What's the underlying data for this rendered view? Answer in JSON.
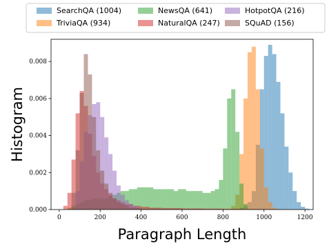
{
  "chart_data": {
    "type": "bar",
    "subtype": "overlapping-histogram",
    "xlabel": "Paragraph Length",
    "ylabel": "Histogram",
    "xlim": [
      -40,
      1240
    ],
    "ylim": [
      0,
      0.0092
    ],
    "xticks": [
      0,
      200,
      400,
      600,
      800,
      1000,
      1200
    ],
    "yticks": [
      0.0,
      0.002,
      0.004,
      0.006,
      0.008
    ],
    "ytick_labels": [
      "0.000",
      "0.002",
      "0.004",
      "0.006",
      "0.008"
    ],
    "grid": false,
    "legend_position": "top, outside plot, 3 columns",
    "series": [
      {
        "name": "SearchQA (1004)",
        "color": "#1f77b4",
        "bins": [
          [
            880,
            900,
            0.0001
          ],
          [
            900,
            920,
            0.0002
          ],
          [
            920,
            940,
            0.0004
          ],
          [
            940,
            960,
            0.001
          ],
          [
            960,
            980,
            0.0035
          ],
          [
            980,
            1000,
            0.0065
          ],
          [
            1000,
            1020,
            0.0083
          ],
          [
            1020,
            1040,
            0.0089
          ],
          [
            1040,
            1060,
            0.0084
          ],
          [
            1060,
            1080,
            0.0069
          ],
          [
            1080,
            1100,
            0.0052
          ],
          [
            1100,
            1120,
            0.0034
          ],
          [
            1120,
            1140,
            0.002
          ],
          [
            1140,
            1160,
            0.001
          ],
          [
            1160,
            1180,
            0.0004
          ],
          [
            1180,
            1200,
            0.00015
          ],
          [
            1200,
            1220,
            5e-05
          ]
        ]
      },
      {
        "name": "TriviaQA (934)",
        "color": "#ff7f0e",
        "bins": [
          [
            840,
            860,
            0.0002
          ],
          [
            860,
            880,
            0.0008
          ],
          [
            880,
            900,
            0.003
          ],
          [
            900,
            920,
            0.006
          ],
          [
            920,
            940,
            0.0085
          ],
          [
            940,
            960,
            0.0088
          ],
          [
            960,
            980,
            0.0065
          ],
          [
            980,
            1000,
            0.0033
          ],
          [
            1000,
            1020,
            0.0012
          ],
          [
            1020,
            1040,
            0.0004
          ],
          [
            1040,
            1060,
            0.0001
          ]
        ]
      },
      {
        "name": "NewsQA (641)",
        "color": "#2ca02c",
        "bins": [
          [
            40,
            60,
            0.0001
          ],
          [
            60,
            80,
            0.0002
          ],
          [
            80,
            100,
            0.0003
          ],
          [
            100,
            120,
            0.0004
          ],
          [
            120,
            140,
            0.0005
          ],
          [
            140,
            160,
            0.0005
          ],
          [
            160,
            180,
            0.0006
          ],
          [
            180,
            200,
            0.0006
          ],
          [
            200,
            220,
            0.0006
          ],
          [
            220,
            240,
            0.0006
          ],
          [
            240,
            260,
            0.0007
          ],
          [
            260,
            280,
            0.0008
          ],
          [
            280,
            300,
            0.0009
          ],
          [
            300,
            320,
            0.001
          ],
          [
            320,
            340,
            0.001
          ],
          [
            340,
            360,
            0.0011
          ],
          [
            360,
            380,
            0.0011
          ],
          [
            380,
            400,
            0.0012
          ],
          [
            400,
            420,
            0.0012
          ],
          [
            420,
            440,
            0.0012
          ],
          [
            440,
            460,
            0.0012
          ],
          [
            460,
            480,
            0.0011
          ],
          [
            480,
            500,
            0.0011
          ],
          [
            500,
            520,
            0.0011
          ],
          [
            520,
            540,
            0.0011
          ],
          [
            540,
            560,
            0.0011
          ],
          [
            560,
            580,
            0.001
          ],
          [
            580,
            600,
            0.0011
          ],
          [
            600,
            620,
            0.0011
          ],
          [
            620,
            640,
            0.001
          ],
          [
            640,
            660,
            0.001
          ],
          [
            660,
            680,
            0.001
          ],
          [
            680,
            700,
            0.001
          ],
          [
            700,
            720,
            0.0009
          ],
          [
            720,
            740,
            0.0009
          ],
          [
            740,
            760,
            0.001
          ],
          [
            760,
            780,
            0.0011
          ],
          [
            780,
            800,
            0.0016
          ],
          [
            800,
            820,
            0.0033
          ],
          [
            820,
            840,
            0.006
          ],
          [
            840,
            860,
            0.0065
          ],
          [
            860,
            880,
            0.0042
          ],
          [
            880,
            900,
            0.0014
          ],
          [
            900,
            920,
            0.0003
          ]
        ]
      },
      {
        "name": "NaturalQA (247)",
        "color": "#d62728",
        "bins": [
          [
            20,
            40,
            0.0002
          ],
          [
            40,
            60,
            0.0009
          ],
          [
            60,
            80,
            0.0027
          ],
          [
            80,
            100,
            0.0052
          ],
          [
            100,
            120,
            0.0064
          ],
          [
            120,
            140,
            0.0056
          ],
          [
            140,
            160,
            0.0041
          ],
          [
            160,
            180,
            0.0029
          ],
          [
            180,
            200,
            0.002
          ],
          [
            200,
            220,
            0.0014
          ],
          [
            220,
            240,
            0.0011
          ],
          [
            240,
            260,
            0.0008
          ],
          [
            260,
            280,
            0.0006
          ],
          [
            280,
            300,
            0.0005
          ],
          [
            300,
            320,
            0.0004
          ],
          [
            320,
            340,
            0.0003
          ],
          [
            340,
            360,
            0.0003
          ],
          [
            360,
            380,
            0.0002
          ],
          [
            380,
            400,
            0.0002
          ],
          [
            400,
            440,
            0.00015
          ],
          [
            440,
            500,
            0.0001
          ],
          [
            500,
            600,
            8e-05
          ],
          [
            600,
            700,
            6e-05
          ],
          [
            700,
            800,
            5e-05
          ],
          [
            800,
            900,
            4e-05
          ],
          [
            900,
            1000,
            3e-05
          ],
          [
            1000,
            1100,
            2e-05
          ]
        ]
      },
      {
        "name": "HotpotQA (216)",
        "color": "#9467bd",
        "bins": [
          [
            80,
            100,
            0.001
          ],
          [
            100,
            120,
            0.0026
          ],
          [
            120,
            140,
            0.0042
          ],
          [
            140,
            160,
            0.0051
          ],
          [
            160,
            180,
            0.0057
          ],
          [
            180,
            200,
            0.0058
          ],
          [
            200,
            220,
            0.005
          ],
          [
            220,
            240,
            0.0039
          ],
          [
            240,
            260,
            0.003
          ],
          [
            260,
            280,
            0.0021
          ],
          [
            280,
            300,
            0.0013
          ],
          [
            300,
            320,
            0.0008
          ],
          [
            320,
            340,
            0.0005
          ],
          [
            340,
            360,
            0.0003
          ],
          [
            360,
            380,
            0.0002
          ],
          [
            380,
            400,
            0.0001
          ]
        ]
      },
      {
        "name": "SQuAD (156)",
        "color": "#8c564b",
        "bins": [
          [
            60,
            80,
            0.0009
          ],
          [
            80,
            100,
            0.0032
          ],
          [
            100,
            120,
            0.0063
          ],
          [
            120,
            140,
            0.0084
          ],
          [
            140,
            160,
            0.0073
          ],
          [
            160,
            180,
            0.005
          ],
          [
            180,
            200,
            0.0032
          ],
          [
            200,
            220,
            0.0021
          ],
          [
            220,
            240,
            0.0014
          ],
          [
            240,
            260,
            0.0009
          ],
          [
            260,
            280,
            0.0006
          ],
          [
            280,
            300,
            0.0004
          ],
          [
            300,
            320,
            0.0003
          ],
          [
            320,
            340,
            0.0002
          ],
          [
            340,
            360,
            0.0001
          ],
          [
            360,
            400,
            8e-05
          ],
          [
            400,
            500,
            5e-05
          ],
          [
            500,
            600,
            4e-05
          ],
          [
            600,
            700,
            3e-05
          ],
          [
            700,
            800,
            2e-05
          ]
        ]
      }
    ]
  }
}
